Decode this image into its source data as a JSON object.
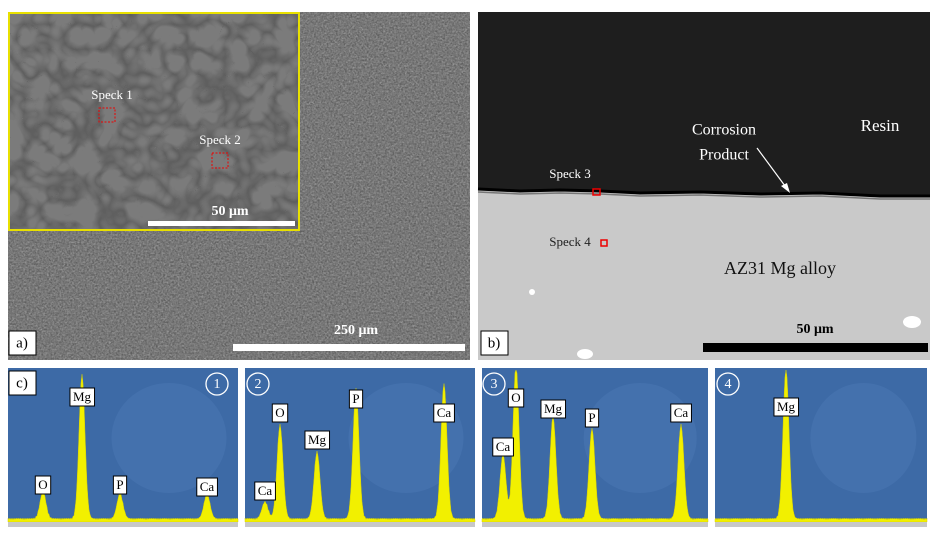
{
  "panels": {
    "a": {
      "label": "a)",
      "specks": [
        "Speck 1",
        "Speck 2"
      ],
      "inset_scale": "50 μm",
      "scale": "250 μm"
    },
    "b": {
      "label": "b)",
      "specks": [
        "Speck 3",
        "Speck 4"
      ],
      "resin": "Resin",
      "product": [
        "Corrosion",
        "Product"
      ],
      "alloy": "AZ31 Mg alloy",
      "scale": "50 μm"
    },
    "c": {
      "label": "c)",
      "spectra": [
        {
          "number": "1",
          "peaks": [
            "O",
            "Mg",
            "P",
            "Ca"
          ]
        },
        {
          "number": "2",
          "peaks": [
            "Ca",
            "O",
            "Mg",
            "P",
            "Ca"
          ]
        },
        {
          "number": "3",
          "peaks": [
            "Ca",
            "O",
            "Mg",
            "P",
            "Ca"
          ]
        },
        {
          "number": "4",
          "peaks": [
            "Mg"
          ]
        }
      ]
    }
  }
}
